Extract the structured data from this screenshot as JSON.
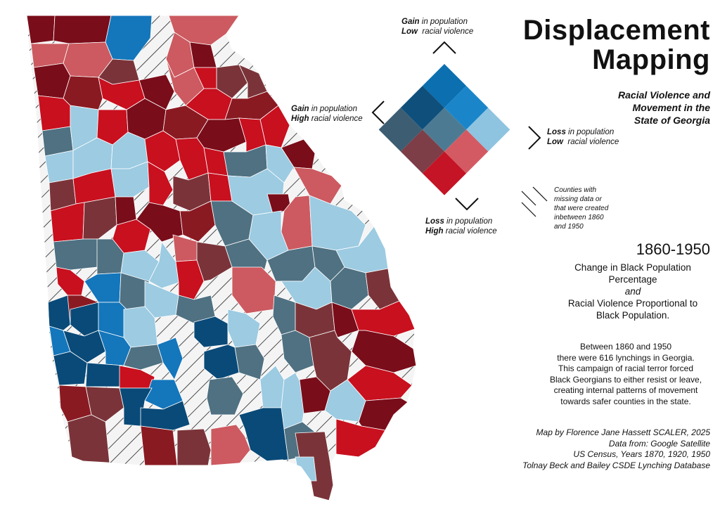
{
  "title": {
    "line1": "Displacement",
    "line2": "Mapping",
    "sub1": "Racial Violence and",
    "sub2": "Movement in the",
    "sub3": "State of Georgia"
  },
  "legend": {
    "top": {
      "strong": "Gain",
      "rest1": " in population",
      "strong2": "Low",
      "rest2": "  racial violence"
    },
    "left": {
      "strong": "Gain",
      "rest1": " in population",
      "strong2": "High",
      "rest2": " racial violence"
    },
    "right": {
      "strong": "Loss",
      "rest1": " in population",
      "strong2": "Low",
      "rest2": "  racial violence"
    },
    "bottom": {
      "strong": "Loss",
      "rest1": " in population",
      "strong2": "High",
      "rest2": " racial violence"
    },
    "matrix_colors": [
      [
        "#0b6fb0",
        "#1a86c9",
        "#8fc4e0"
      ],
      [
        "#0f4f7c",
        "#4d7a93",
        "#d35a62"
      ],
      [
        "#3d5d72",
        "#7d3e48",
        "#c41425"
      ]
    ],
    "matrix_colors_note": ""
  },
  "hatch_note": [
    "Counties with",
    "missing data or",
    "that were created",
    "inbetween 1860",
    "and 1950"
  ],
  "period": "1860-1950",
  "description": {
    "l1": "Change in Black Population",
    "l2": "Percentage",
    "and": "and",
    "l3": "Racial Violence Proportional to",
    "l4": "Black Population."
  },
  "paragraph": [
    "Between 1860 and 1950",
    "there were 616 lynchings in Georgia.",
    "This campaign of racial terror forced",
    "Black Georgians to either resist or leave,",
    "creating internal patterns of movement",
    "towards safer counties in the state."
  ],
  "credits": [
    "Map by Florence Jane Hassett SCALER, 2025",
    "Data from: Google Satellite",
    "US Census, Years 1870, 1920, 1950",
    "Tolnay Beck and Bailey CSDE Lynching Database"
  ],
  "palette": {
    "dark_red": "#7a0d1a",
    "red": "#c8101f",
    "mid_red": "#8a1a22",
    "brown_red": "#7a3439",
    "light_red": "#cc5a60",
    "light_blue": "#9ccbe2",
    "mid_blue": "#1476bb",
    "dark_blue": "#0a4a78",
    "slate": "#4f7182",
    "hatch": "#ffffff"
  }
}
